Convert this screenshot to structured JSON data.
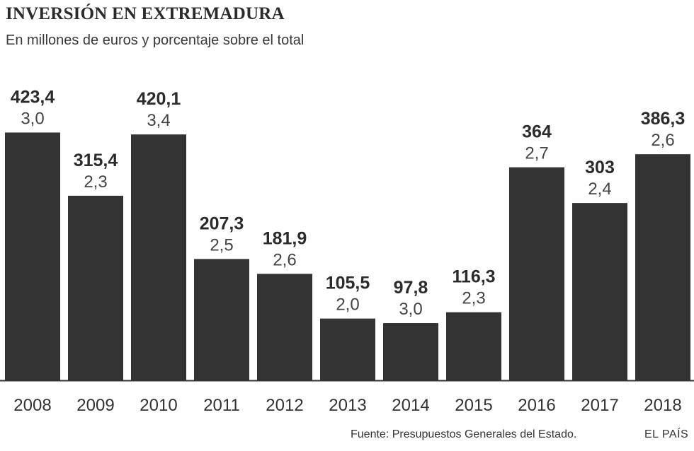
{
  "title": "INVERSIÓN EN EXTREMADURA",
  "subtitle": "En millones de euros y porcentaje sobre el total",
  "source": "Fuente: Presupuestos Generales del Estado.",
  "brand": "EL PAÍS",
  "colors": {
    "bar": "#333333",
    "text": "#333333",
    "baseline": "#333333"
  },
  "chart_data": {
    "type": "bar",
    "categories": [
      "2008",
      "2009",
      "2010",
      "2011",
      "2012",
      "2013",
      "2014",
      "2015",
      "2016",
      "2017",
      "2018"
    ],
    "values": [
      423.4,
      315.4,
      420.1,
      207.3,
      181.9,
      105.5,
      97.8,
      116.3,
      364,
      303,
      386.3
    ],
    "value_labels": [
      "423,4",
      "315,4",
      "420,1",
      "207,3",
      "181,9",
      "105,5",
      "97,8",
      "116,3",
      "364",
      "303",
      "386,3"
    ],
    "percent_labels": [
      "3,0",
      "2,3",
      "3,4",
      "2,5",
      "2,6",
      "2,0",
      "3,0",
      "2,3",
      "2,7",
      "2,4",
      "2,6"
    ],
    "ylim": [
      0,
      430
    ],
    "grid": false,
    "legend": "none"
  }
}
